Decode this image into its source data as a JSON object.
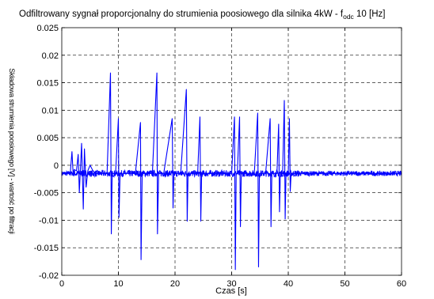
{
  "chart_data": {
    "type": "line",
    "title_main": "Odfiltrowany sygnał proporcjonalny do strumienia poosiowego dla silnika 4kW - f",
    "title_sub": "odc",
    "title_tail": " 10 [Hz]",
    "xlabel": "Czas [s]",
    "ylabel": "Składowa strumienia poosiowego [V] - wartość po filtracji",
    "xlim": [
      0,
      60
    ],
    "ylim": [
      -0.02,
      0.025
    ],
    "x_ticks": [
      0,
      10,
      20,
      30,
      40,
      50,
      60
    ],
    "x_tick_labels": [
      "0",
      "10",
      "20",
      "30",
      "40",
      "50",
      "60"
    ],
    "y_ticks": [
      -0.02,
      -0.015,
      -0.01,
      -0.005,
      0,
      0.005,
      0.01,
      0.015,
      0.02,
      0.025
    ],
    "y_tick_labels": [
      "-0.02",
      "-0.015",
      "-0.01",
      "-0.005",
      "0",
      "0.005",
      "0.01",
      "0.015",
      "0.02",
      "0.025"
    ],
    "grid": true,
    "line_color": "#0000ff",
    "baseline": -0.0015,
    "series": [
      {
        "x": [
          0,
          1.5,
          1.8,
          2.0,
          2.2,
          2.6,
          2.9,
          3.1,
          3.5,
          3.8,
          4.0,
          4.3,
          4.6,
          5.0,
          5.5,
          6.0,
          6.5,
          7.0,
          8.0,
          8.6,
          8.75,
          8.9,
          9.1,
          9.5,
          10.0,
          10.1,
          10.3,
          10.5,
          11.0,
          12.0,
          13.0,
          13.9,
          14.0,
          14.2,
          14.4,
          15.0,
          16.0,
          16.8,
          16.9,
          17.1,
          17.3,
          18.0,
          19.5,
          19.65,
          19.8,
          20.0,
          21.0,
          22.0,
          22.15,
          22.3,
          22.5,
          23.0,
          24.0,
          24.4,
          24.55,
          24.7,
          25.0,
          26.0,
          27.5,
          28.0,
          29.0,
          30.0,
          30.5,
          30.65,
          30.8,
          31.0,
          31.4,
          31.55,
          31.7,
          32.0,
          33.0,
          34.0,
          34.6,
          34.75,
          34.9,
          35.2,
          36.0,
          36.8,
          36.95,
          37.1,
          37.5,
          38.0,
          38.3,
          38.45,
          38.6,
          39.0,
          39.3,
          39.45,
          39.6,
          40.0,
          40.2,
          40.35,
          40.5,
          41.0,
          45.0,
          50.0,
          55.0,
          60.0
        ],
        "y": [
          -0.0015,
          -0.0015,
          0.0025,
          -0.0015,
          -0.0008,
          -0.001,
          0.002,
          -0.005,
          0.004,
          -0.008,
          0.003,
          -0.004,
          -0.001,
          0.0,
          -0.001,
          -0.0015,
          -0.0015,
          -0.0015,
          -0.0015,
          0.0168,
          -0.0125,
          -0.0015,
          -0.0015,
          -0.0015,
          0.0085,
          -0.0095,
          -0.0015,
          -0.0015,
          -0.0015,
          -0.0015,
          -0.0015,
          0.0078,
          -0.0172,
          -0.0015,
          -0.0015,
          -0.0015,
          -0.0015,
          0.0168,
          -0.0125,
          -0.0015,
          -0.0015,
          -0.0015,
          0.0085,
          -0.0078,
          -0.0015,
          -0.0015,
          -0.0015,
          0.0138,
          -0.0102,
          -0.0015,
          -0.0015,
          -0.0015,
          -0.0015,
          0.0088,
          -0.0102,
          -0.0015,
          -0.0015,
          -0.0015,
          -0.0015,
          -0.0015,
          -0.0015,
          -0.0015,
          0.0088,
          -0.019,
          -0.0015,
          -0.0015,
          0.0088,
          -0.0112,
          -0.0015,
          -0.0015,
          -0.0015,
          -0.0015,
          0.0095,
          -0.0185,
          -0.0015,
          -0.0015,
          -0.0015,
          0.0085,
          -0.0112,
          -0.0015,
          -0.0015,
          -0.0015,
          0.0075,
          -0.0085,
          -0.0015,
          -0.0015,
          0.0118,
          -0.0098,
          -0.0015,
          -0.0015,
          0.0085,
          -0.0048,
          -0.0015,
          -0.0015,
          -0.0015,
          -0.0015,
          -0.0015,
          -0.0015
        ]
      }
    ]
  }
}
